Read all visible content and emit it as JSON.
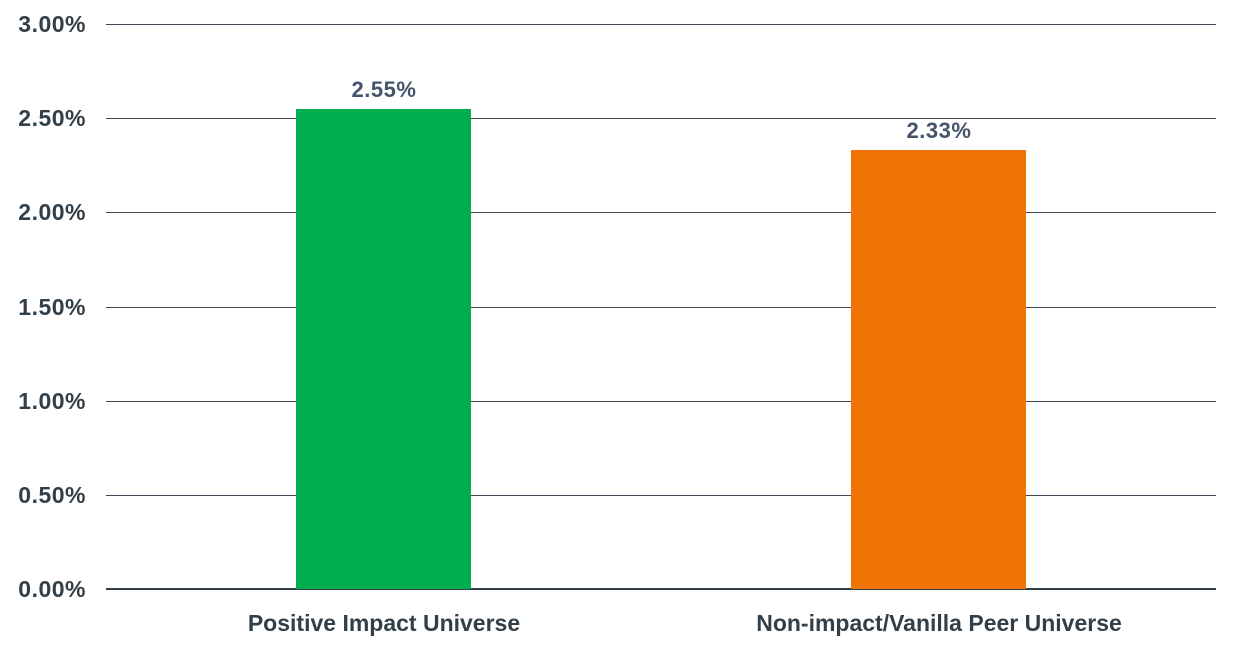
{
  "chart_data": {
    "type": "bar",
    "title": "",
    "xlabel": "",
    "ylabel": "",
    "categories": [
      "Positive Impact Universe",
      "Non-impact/Vanilla Peer Universe"
    ],
    "values": [
      2.55,
      2.33
    ],
    "value_labels": [
      "2.55%",
      "2.33%"
    ],
    "bar_colors": [
      "#00AE50",
      "#F07305"
    ],
    "ylim": [
      0,
      3
    ],
    "y_tick_step": 0.5,
    "y_tick_labels": [
      "0.00%",
      "0.50%",
      "1.00%",
      "1.50%",
      "2.00%",
      "2.50%",
      "3.00%"
    ],
    "grid": true,
    "legend_position": "none"
  },
  "style": {
    "background_color": "#FFFFFF",
    "axis_label_color": "#333F48",
    "data_label_color": "#44546A",
    "gridline_color": "#3E4755",
    "axis_line_color": "#333F48"
  }
}
